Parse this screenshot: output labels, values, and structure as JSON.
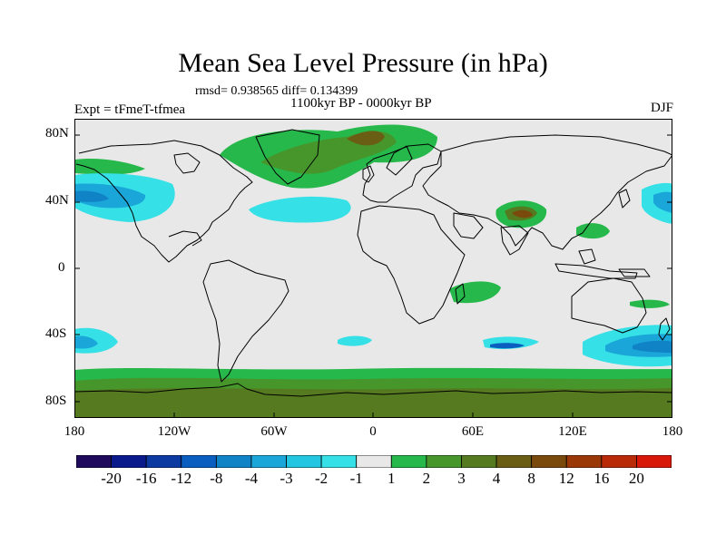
{
  "title": "Mean Sea Level Pressure (in hPa)",
  "stats": "rmsd= 0.938565 diff= 0.134399",
  "experiment": "Expt = tFmeT-tfmea",
  "period": "1100kyr BP - 0000kyr BP",
  "season": "DJF",
  "map": {
    "projection": "cylindrical equidistant",
    "lon_range": [
      -180,
      180
    ],
    "lat_range": [
      -90,
      90
    ],
    "background_color": "#e8e8e8",
    "coastline_color": "#000000"
  },
  "axes": {
    "y_ticks": [
      {
        "label": "80N",
        "lat": 80
      },
      {
        "label": "40N",
        "lat": 40
      },
      {
        "label": "0",
        "lat": 0
      },
      {
        "label": "40S",
        "lat": -40
      },
      {
        "label": "80S",
        "lat": -80
      }
    ],
    "x_ticks": [
      {
        "label": "180",
        "lon": -180
      },
      {
        "label": "120W",
        "lon": -120
      },
      {
        "label": "60W",
        "lon": -60
      },
      {
        "label": "0",
        "lon": 0
      },
      {
        "label": "60E",
        "lon": 60
      },
      {
        "label": "120E",
        "lon": 120
      },
      {
        "label": "180",
        "lon": 180
      }
    ]
  },
  "colorbar": {
    "colors": [
      "#1f0a5c",
      "#0a1a8a",
      "#0d3aa0",
      "#0a5ec0",
      "#1083c6",
      "#1aa6d8",
      "#22c6e0",
      "#35e0e6",
      "#e8e8e8",
      "#26b84a",
      "#46962c",
      "#557a20",
      "#6a5e14",
      "#7a4a0c",
      "#9a3808",
      "#b82a08",
      "#d81808"
    ],
    "labels": [
      "-20",
      "-16",
      "-12",
      "-8",
      "-4",
      "-3",
      "-2",
      "-1",
      "1",
      "2",
      "3",
      "4",
      "8",
      "12",
      "16",
      "20"
    ]
  }
}
